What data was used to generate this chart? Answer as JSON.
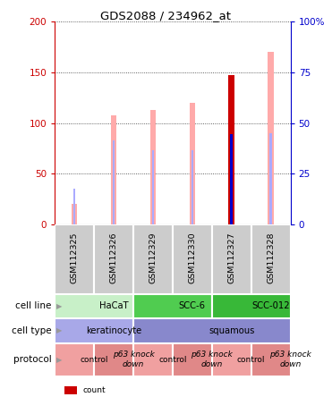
{
  "title": "GDS2088 / 234962_at",
  "samples": [
    "GSM112325",
    "GSM112326",
    "GSM112329",
    "GSM112330",
    "GSM112327",
    "GSM112328"
  ],
  "value_bars": [
    20,
    108,
    113,
    120,
    147,
    170
  ],
  "rank_bars": [
    35,
    83,
    73,
    73,
    89,
    90
  ],
  "count_index": 4,
  "count_value": 147,
  "count_rank": 89,
  "ylim_left": [
    0,
    200
  ],
  "ylim_right": [
    0,
    100
  ],
  "yticks_left": [
    0,
    50,
    100,
    150,
    200
  ],
  "yticks_right": [
    0,
    25,
    50,
    75,
    100
  ],
  "ytick_labels_right": [
    "0",
    "25",
    "50",
    "75",
    "100%"
  ],
  "cell_line_groups": [
    {
      "label": "HaCaT",
      "start": 0,
      "end": 2,
      "color": "#c8f0c8"
    },
    {
      "label": "SCC-6",
      "start": 2,
      "end": 4,
      "color": "#50cc50"
    },
    {
      "label": "SCC-012",
      "start": 4,
      "end": 6,
      "color": "#38b838"
    }
  ],
  "cell_type_groups": [
    {
      "label": "keratinocyte",
      "start": 0,
      "end": 2,
      "color": "#a8a8e8"
    },
    {
      "label": "squamous",
      "start": 2,
      "end": 6,
      "color": "#8888cc"
    }
  ],
  "protocol_groups": [
    {
      "label": "control",
      "start": 0,
      "end": 1,
      "color": "#f0a0a0",
      "italic": false
    },
    {
      "label": "p63 knock\ndown",
      "start": 1,
      "end": 2,
      "color": "#e08888",
      "italic": true
    },
    {
      "label": "control",
      "start": 2,
      "end": 3,
      "color": "#f0a0a0",
      "italic": false
    },
    {
      "label": "p63 knock\ndown",
      "start": 3,
      "end": 4,
      "color": "#e08888",
      "italic": true
    },
    {
      "label": "control",
      "start": 4,
      "end": 5,
      "color": "#f0a0a0",
      "italic": false
    },
    {
      "label": "p63 knock\ndown",
      "start": 5,
      "end": 6,
      "color": "#e08888",
      "italic": true
    }
  ],
  "color_value_absent": "#ffaaaa",
  "color_rank_absent": "#aaaaff",
  "color_count": "#cc0000",
  "color_rank_present": "#0000cc",
  "value_bar_width": 0.15,
  "rank_bar_width": 0.06,
  "left_axis_color": "#cc0000",
  "right_axis_color": "#0000cc",
  "sample_box_color": "#cccccc",
  "grid_color": "#333333"
}
